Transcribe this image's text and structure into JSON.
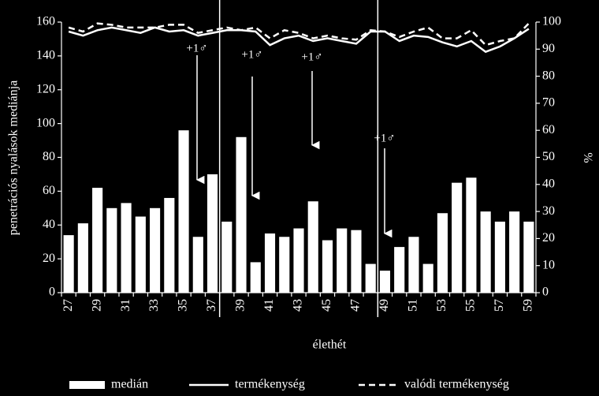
{
  "chart_data": {
    "type": "bar",
    "categories": [
      "27",
      null,
      "29",
      null,
      "31",
      null,
      "33",
      null,
      "35",
      null,
      "37",
      null,
      "39",
      null,
      "41",
      null,
      "43",
      null,
      "45",
      null,
      "47",
      null,
      "49",
      null,
      "51",
      null,
      "53",
      null,
      "55",
      null,
      "57",
      null,
      "59"
    ],
    "series": [
      {
        "name": "medián",
        "color": "#ffffff",
        "type": "bar",
        "values": [
          34,
          41,
          62,
          50,
          53,
          45,
          50,
          56,
          96,
          33,
          70,
          42,
          92,
          18,
          35,
          33,
          38,
          54,
          31,
          38,
          37,
          17,
          13,
          27,
          33,
          17,
          47,
          65,
          68,
          48,
          42,
          48,
          42
        ]
      },
      {
        "name": "termékenység",
        "color": "#ffffff",
        "type": "line",
        "axis": "y2",
        "dash": false,
        "values": [
          96.5,
          95,
          97,
          98,
          97,
          96,
          98,
          96.5,
          97,
          95,
          96,
          97,
          97,
          96.5,
          91.5,
          94,
          95,
          93,
          94,
          93,
          92,
          96.5,
          96.5,
          93,
          95,
          94.5,
          92.5,
          91,
          93,
          89,
          91,
          94,
          97.5
        ]
      },
      {
        "name": "valódi termékenység",
        "color": "#ffffff",
        "type": "line",
        "axis": "y2",
        "dash": true,
        "values": [
          98,
          96.5,
          99.5,
          99,
          98,
          98,
          98,
          99,
          99,
          96,
          97,
          98,
          97,
          98,
          94,
          97,
          96,
          94,
          95,
          94,
          93.5,
          97,
          96.5,
          94.5,
          96.5,
          98,
          94,
          94,
          97,
          91.5,
          93,
          94,
          99.5
        ]
      }
    ],
    "xlabel": "élethét",
    "ylabel": "penetrációs nyalások mediánja",
    "y2label": "%",
    "ylim": [
      0,
      160
    ],
    "yticks": [
      0,
      20,
      40,
      60,
      80,
      100,
      120,
      140,
      160
    ],
    "y2lim": [
      0,
      100
    ],
    "y2ticks": [
      0,
      10,
      20,
      30,
      40,
      50,
      60,
      70,
      80,
      90,
      100
    ],
    "legend": "bottom",
    "annotations": [
      "+1♂",
      "+1♂",
      "+1♂",
      "+1♂"
    ]
  }
}
